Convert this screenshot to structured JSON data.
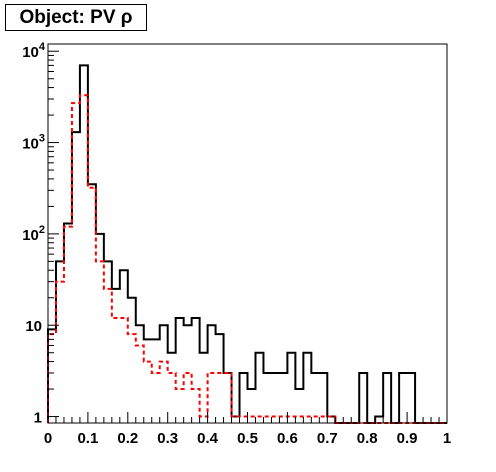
{
  "title": "Object: PV ρ",
  "chart_data": {
    "type": "histogram",
    "title": "Object: PV ρ",
    "xlabel": "",
    "ylabel": "",
    "xlim": [
      0,
      1
    ],
    "ylim": [
      0.85,
      12000
    ],
    "yscale": "log",
    "grid": false,
    "legend": "none",
    "x_ticks": [
      "0",
      "0.1",
      "0.2",
      "0.3",
      "0.4",
      "0.5",
      "0.6",
      "0.7",
      "0.8",
      "0.9",
      "1"
    ],
    "y_ticks": [
      {
        "value": 1,
        "base": "1",
        "exp": ""
      },
      {
        "value": 10,
        "base": "10",
        "exp": ""
      },
      {
        "value": 100,
        "base": "10",
        "exp": "2"
      },
      {
        "value": 1000,
        "base": "10",
        "exp": "3"
      },
      {
        "value": 10000,
        "base": "10",
        "exp": "4"
      }
    ],
    "bin_edges": [
      0.0,
      0.02,
      0.04,
      0.06,
      0.08,
      0.1,
      0.12,
      0.14,
      0.16,
      0.18,
      0.2,
      0.22,
      0.24,
      0.26,
      0.28,
      0.3,
      0.32,
      0.34,
      0.36,
      0.38,
      0.4,
      0.42,
      0.44,
      0.46,
      0.48,
      0.5,
      0.52,
      0.54,
      0.56,
      0.58,
      0.6,
      0.62,
      0.64,
      0.66,
      0.68,
      0.7,
      0.72,
      0.74,
      0.76,
      0.78,
      0.8,
      0.82,
      0.84,
      0.86,
      0.88,
      0.9,
      0.92,
      0.94,
      0.96,
      0.98,
      1.0
    ],
    "series": [
      {
        "color": "#000000",
        "style": "solid",
        "values": [
          9,
          50,
          130,
          1300,
          7000,
          350,
          100,
          50,
          25,
          40,
          20,
          10,
          7,
          7,
          10,
          5,
          12,
          10,
          12,
          5,
          10,
          8,
          3,
          1,
          3,
          2,
          5,
          3,
          3,
          3,
          5,
          2,
          5,
          3,
          3,
          1,
          0,
          0,
          0,
          3,
          0,
          1,
          3,
          0,
          3,
          3,
          0,
          0,
          0,
          0
        ]
      },
      {
        "color": "#ff0000",
        "style": "dashed",
        "values": [
          8,
          30,
          120,
          2700,
          3300,
          320,
          50,
          25,
          12,
          12,
          8,
          6,
          4,
          3,
          4,
          3,
          2,
          3,
          2,
          1,
          3,
          3,
          3,
          1,
          1,
          1,
          1,
          1,
          1,
          1,
          1,
          1,
          1,
          1,
          1,
          1,
          0,
          0,
          0,
          0,
          0,
          0,
          0,
          0,
          0,
          0,
          0,
          0,
          0,
          0
        ]
      }
    ]
  }
}
